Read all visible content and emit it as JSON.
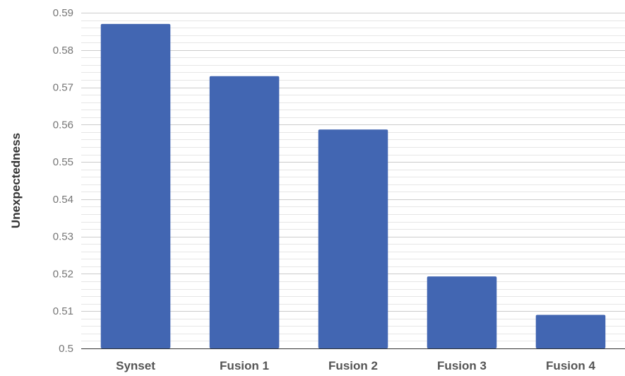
{
  "chart_data": {
    "type": "bar",
    "categories": [
      "Synset",
      "Fusion 1",
      "Fusion 2",
      "Fusion 3",
      "Fusion 4"
    ],
    "values": [
      0.587,
      0.573,
      0.5587,
      0.5193,
      0.509
    ],
    "title": "",
    "xlabel": "",
    "ylabel": "Unexpectedness",
    "ylim": [
      0.5,
      0.59
    ],
    "yticks": [
      "0.5",
      "0.51",
      "0.52",
      "0.53",
      "0.54",
      "0.55",
      "0.56",
      "0.57",
      "0.58",
      "0.59"
    ],
    "grid": true,
    "bar_color": "#4266b2",
    "major_grid_color": "#cccccc",
    "minor_grid_color": "#e6e6e6"
  }
}
